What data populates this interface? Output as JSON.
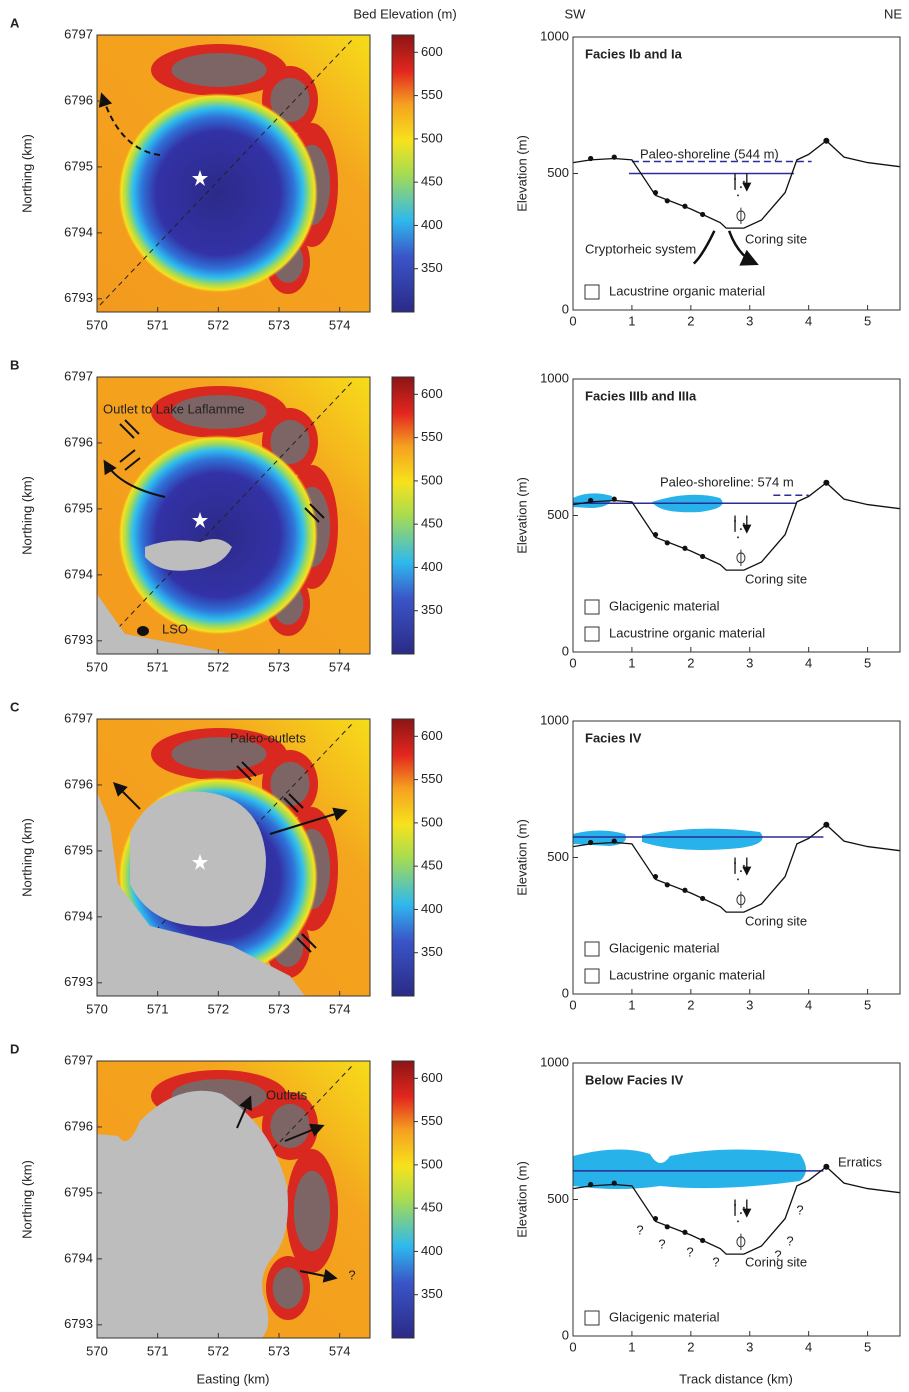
{
  "figure": {
    "shared": {
      "colorbar_title": "Bed Elevation (m)",
      "colorbar_lim": [
        300,
        620
      ],
      "colorbar_ticks": [
        350,
        400,
        450,
        500,
        550,
        600
      ],
      "map_xlabel": "Easting (km)",
      "map_ylabel": "Northing (km)",
      "map_xlim": [
        570,
        574.5
      ],
      "map_ylim": [
        6792.8,
        6797
      ],
      "map_xticks": [
        570,
        571,
        572,
        573,
        574
      ],
      "map_yticks": [
        6793,
        6794,
        6795,
        6796,
        6797
      ],
      "sw": "SW",
      "ne": "NE",
      "profile_xlabel": "Track distance (km)",
      "profile_ylabel": "Elevation (m)",
      "profile_xlim": [
        0,
        5.55
      ],
      "profile_ylim": [
        0,
        1000
      ],
      "profile_xticks": [
        0,
        1,
        2,
        3,
        4,
        5
      ],
      "profile_yticks": [
        0,
        500,
        1000
      ],
      "terrain_x": [
        0,
        0.3,
        0.7,
        1.0,
        1.4,
        2.0,
        2.5,
        2.6,
        2.9,
        3.2,
        3.6,
        3.8,
        4.0,
        4.3,
        4.6,
        5.0,
        5.55
      ],
      "terrain_y": [
        540,
        550,
        555,
        550,
        420,
        370,
        320,
        300,
        300,
        330,
        430,
        550,
        570,
        620,
        560,
        540,
        525
      ]
    },
    "panels": [
      {
        "letter": "A",
        "profile_title": "Facies Ib and Ia",
        "shoreline": 544,
        "water_level": 500,
        "map_labels": [],
        "profile_labels": [
          "Paleo-shoreline (544 m)",
          "Coring site",
          "Cryptorheic system"
        ],
        "legend": [
          "Lacustrine organic material"
        ]
      },
      {
        "letter": "B",
        "profile_title": "Facies IIIb and IIIa",
        "shoreline": 574,
        "water_level": 545,
        "map_labels": [
          "Outlet to Lake Laflamme",
          "LSO"
        ],
        "profile_labels": [
          "Paleo-shoreline: 574 m",
          "Coring site"
        ],
        "legend": [
          "Glacigenic material",
          "Lacustrine organic material"
        ]
      },
      {
        "letter": "C",
        "profile_title": "Facies IV",
        "water_level": 575,
        "map_labels": [
          "Paleo-outlets"
        ],
        "profile_labels": [
          "Coring site"
        ],
        "legend": [
          "Glacigenic material",
          "Lacustrine organic material"
        ]
      },
      {
        "letter": "D",
        "profile_title": "Below Facies IV",
        "water_level": 605,
        "map_labels": [
          "Outlets",
          "?"
        ],
        "profile_labels": [
          "Erratics",
          "Coring site",
          "?",
          "?",
          "?",
          "?",
          "?",
          "?",
          "?"
        ],
        "legend": [
          "Glacigenic material"
        ]
      }
    ]
  }
}
